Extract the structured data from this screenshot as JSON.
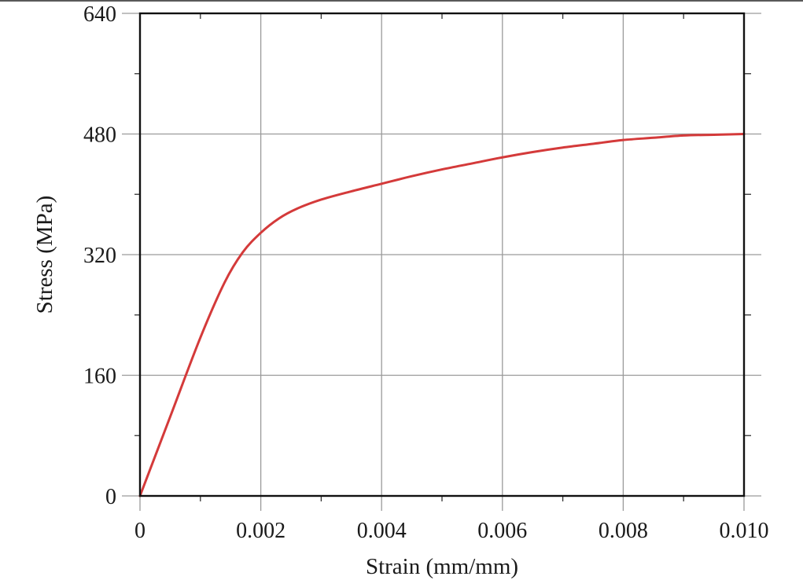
{
  "chart_data": {
    "type": "line",
    "title": "",
    "xlabel": "Strain (mm/mm)",
    "ylabel": "Stress (MPa)",
    "xlim": [
      0,
      0.01
    ],
    "ylim": [
      0,
      640
    ],
    "x_ticks": [
      0,
      0.002,
      0.004,
      0.006,
      0.008,
      0.01
    ],
    "x_tick_labels": [
      "0",
      "0.002",
      "0.004",
      "0.006",
      "0.008",
      "0.010"
    ],
    "y_ticks": [
      0,
      160,
      320,
      480,
      640
    ],
    "y_tick_labels": [
      "0",
      "160",
      "320",
      "480",
      "640"
    ],
    "x_minor_ticks": [
      0.001,
      0.003,
      0.005,
      0.007,
      0.009
    ],
    "y_minor_ticks": [
      80,
      240,
      400,
      560
    ],
    "grid": true,
    "legend": "none",
    "series": [
      {
        "color": "#d43a3a",
        "x": [
          0,
          0.0005,
          0.001,
          0.0014,
          0.0017,
          0.002,
          0.0023,
          0.0026,
          0.003,
          0.0035,
          0.004,
          0.0045,
          0.005,
          0.0055,
          0.006,
          0.0065,
          0.007,
          0.0075,
          0.008,
          0.0085,
          0.009,
          0.0095,
          0.01
        ],
        "y": [
          0,
          105,
          210,
          283,
          323,
          349,
          368,
          381,
          393,
          404,
          414,
          424,
          433,
          441,
          449,
          456,
          462,
          467,
          472,
          475,
          478,
          479,
          480
        ]
      }
    ]
  }
}
